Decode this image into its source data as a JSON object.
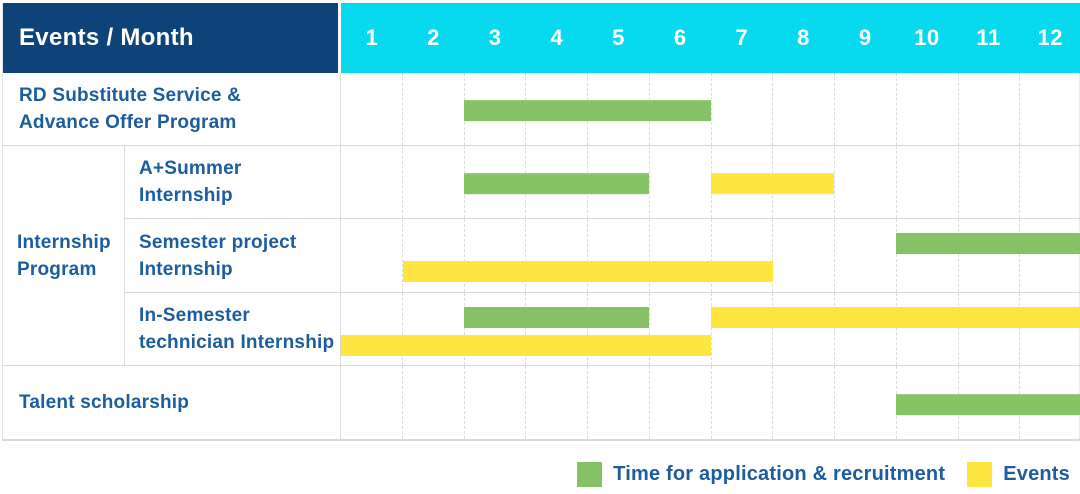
{
  "header": {
    "title": "Events / Month",
    "months": [
      "1",
      "2",
      "3",
      "4",
      "5",
      "6",
      "7",
      "8",
      "9",
      "10",
      "11",
      "12"
    ]
  },
  "colors": {
    "navy": "#0e4379",
    "cyan": "#07d9ee",
    "green": "#87c266",
    "yellow": "#ffe540",
    "label_blue": "#1d5c9f"
  },
  "legend": {
    "items": [
      {
        "label": "Time for application & recruitment",
        "color": "green"
      },
      {
        "label": "Events",
        "color": "yellow"
      }
    ]
  },
  "chart_data": {
    "type": "bar",
    "variant": "gantt-timeline",
    "title": "Events / Month",
    "xlabel": "Month",
    "x_range": [
      1,
      12
    ],
    "x_ticks": [
      1,
      2,
      3,
      4,
      5,
      6,
      7,
      8,
      9,
      10,
      11,
      12
    ],
    "series_legend": {
      "green": "Time for application & recruitment",
      "yellow": "Events"
    },
    "rows": [
      {
        "label": "RD Substitute Service & Advance Offer Program",
        "label_lines": [
          "RD Substitute Service &",
          "Advance Offer Program"
        ],
        "group": null,
        "bars": [
          {
            "series": "Time for application & recruitment",
            "color": "green",
            "start_month": 3,
            "end_month": 6,
            "lane": "mid"
          }
        ]
      },
      {
        "label": "A+Summer Internship",
        "label_lines": [
          "A+Summer",
          "Internship"
        ],
        "group": "Internship Program",
        "bars": [
          {
            "series": "Time for application & recruitment",
            "color": "green",
            "start_month": 3,
            "end_month": 5,
            "lane": "mid"
          },
          {
            "series": "Events",
            "color": "yellow",
            "start_month": 7,
            "end_month": 8,
            "lane": "mid"
          }
        ]
      },
      {
        "label": "Semester project Internship",
        "label_lines": [
          "Semester project",
          "Internship"
        ],
        "group": "Internship Program",
        "bars": [
          {
            "series": "Time for application & recruitment",
            "color": "green",
            "start_month": 10,
            "end_month": 12,
            "lane": "top"
          },
          {
            "series": "Events",
            "color": "yellow",
            "start_month": 2,
            "end_month": 7,
            "lane": "bottom"
          }
        ]
      },
      {
        "label": "In-Semester technician Internship",
        "label_lines": [
          "In-Semester",
          "technician Internship"
        ],
        "group": "Internship Program",
        "bars": [
          {
            "series": "Time for application & recruitment",
            "color": "green",
            "start_month": 3,
            "end_month": 5,
            "lane": "top"
          },
          {
            "series": "Events",
            "color": "yellow",
            "start_month": 7,
            "end_month": 12,
            "lane": "top"
          },
          {
            "series": "Events",
            "color": "yellow",
            "start_month": 1,
            "end_month": 6,
            "lane": "bottom"
          }
        ]
      },
      {
        "label": "Talent scholarship",
        "label_lines": [
          "Talent scholarship"
        ],
        "group": null,
        "bars": [
          {
            "series": "Time for application & recruitment",
            "color": "green",
            "start_month": 10,
            "end_month": 12,
            "lane": "mid"
          }
        ]
      }
    ],
    "group_label_lines": [
      "Internship",
      "Program"
    ]
  }
}
